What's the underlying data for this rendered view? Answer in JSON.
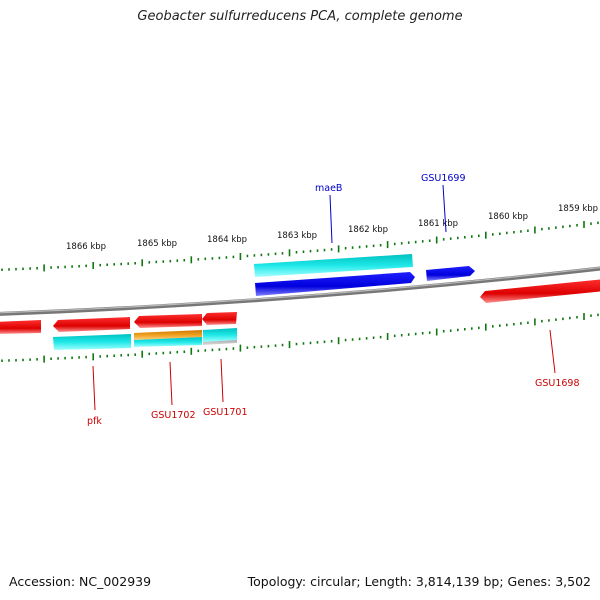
{
  "title": "Geobacter sulfurreducens PCA, complete genome",
  "footer": {
    "accession": "Accession: NC_002939",
    "summary": "Topology: circular; Length: 3,814,139 bp; Genes: 3,502"
  },
  "ticks": [
    {
      "label": "1866 kbp"
    },
    {
      "label": "1865 kbp"
    },
    {
      "label": "1864 kbp"
    },
    {
      "label": "1863 kbp"
    },
    {
      "label": "1862 kbp"
    },
    {
      "label": "1861 kbp"
    },
    {
      "label": "1860 kbp"
    },
    {
      "label": "1859 kbp"
    }
  ],
  "genes": [
    {
      "label": "maeB",
      "color": "#0000cc"
    },
    {
      "label": "GSU1699",
      "color": "#0000cc"
    },
    {
      "label": "GSU1698",
      "color": "#cc0000"
    },
    {
      "label": "pfk",
      "color": "#cc0000"
    },
    {
      "label": "GSU1702",
      "color": "#cc0000"
    },
    {
      "label": "GSU1701",
      "color": "#cc0000"
    }
  ],
  "colors": {
    "forward_gene": "#0000ee",
    "reverse_gene": "#ee0000",
    "feature_cyan": "#22dddd",
    "feature_orange": "#ee9900",
    "backbone": "#888888",
    "ticks": "#117711"
  }
}
